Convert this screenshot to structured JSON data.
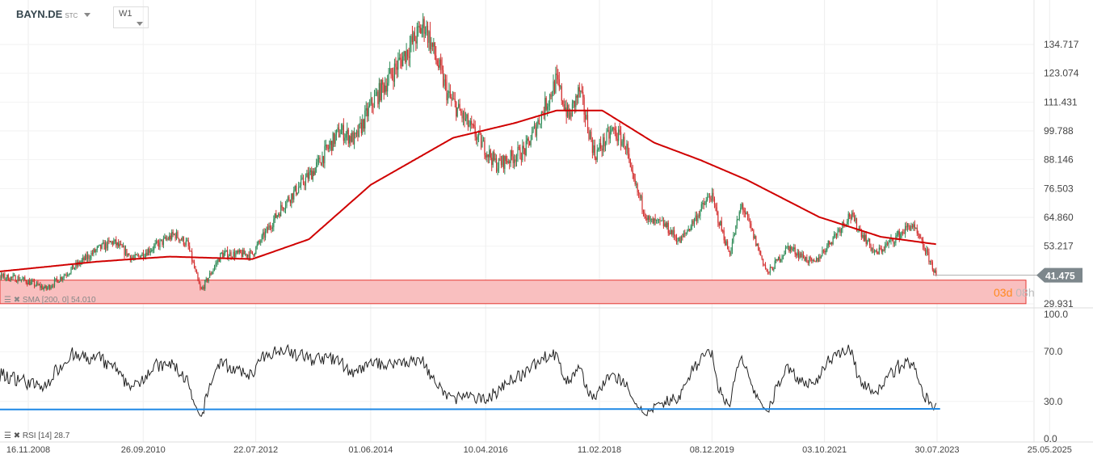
{
  "header": {
    "symbol": "BAYN.DE",
    "symbol_tag": "STC",
    "timeframe": "W1"
  },
  "indicators": {
    "sma_label": "SMA [200, 0] 54.010",
    "rsi_label": "RSI [14] 28.7"
  },
  "countdown": {
    "days": "03d",
    "hours": "08h"
  },
  "colors": {
    "up": "#2e8b57",
    "down": "#d32f2f",
    "sma": "#d00000",
    "zone_fill": "#f9bfbf",
    "zone_border": "#e53935",
    "rsi": "#222222",
    "rsi_support": "#1e88e5",
    "price_tag": "#7d878c",
    "countdown": "#ff8a1e"
  },
  "chart_data": [
    {
      "type": "candlestick",
      "title": "",
      "y_ticks": [
        "134.717",
        "123.074",
        "111.431",
        "99.788",
        "88.146",
        "76.503",
        "64.860",
        "53.217",
        "29.931"
      ],
      "ylim": [
        29.931,
        134.717
      ],
      "x_ticks": [
        "16.11.2008",
        "26.09.2010",
        "22.07.2012",
        "01.06.2014",
        "10.04.2016",
        "11.02.2018",
        "08.12.2019",
        "03.10.2021",
        "30.07.2023",
        "25.05.2025"
      ],
      "last_price": "41.475",
      "price_path": [
        [
          "2008-01-07",
          42
        ],
        [
          "2008-10-01",
          40
        ],
        [
          "2009-03-01",
          36
        ],
        [
          "2010-01-01",
          52
        ],
        [
          "2010-04-01",
          55
        ],
        [
          "2010-08-01",
          48
        ],
        [
          "2011-04-01",
          58
        ],
        [
          "2011-06-15",
          54
        ],
        [
          "2011-09-01",
          35
        ],
        [
          "2012-01-01",
          50
        ],
        [
          "2012-07-01",
          50
        ],
        [
          "2013-01-01",
          70
        ],
        [
          "2013-07-01",
          84
        ],
        [
          "2013-12-01",
          100
        ],
        [
          "2014-03-01",
          96
        ],
        [
          "2014-06-01",
          110
        ],
        [
          "2015-04-15",
          143
        ],
        [
          "2015-09-01",
          114
        ],
        [
          "2016-01-01",
          102
        ],
        [
          "2016-06-15",
          86
        ],
        [
          "2016-12-01",
          92
        ],
        [
          "2017-06-01",
          120
        ],
        [
          "2017-08-15",
          105
        ],
        [
          "2017-10-15",
          116
        ],
        [
          "2018-01-15",
          90
        ],
        [
          "2018-05-01",
          100
        ],
        [
          "2018-07-20",
          94
        ],
        [
          "2018-08-15",
          82
        ],
        [
          "2018-12-01",
          63
        ],
        [
          "2019-03-01",
          62
        ],
        [
          "2019-06-01",
          55
        ],
        [
          "2019-12-01",
          74
        ],
        [
          "2020-03-20",
          50
        ],
        [
          "2020-06-01",
          70
        ],
        [
          "2020-11-01",
          42
        ],
        [
          "2021-03-01",
          53
        ],
        [
          "2021-08-01",
          46
        ],
        [
          "2022-03-01",
          66
        ],
        [
          "2022-08-01",
          50
        ],
        [
          "2023-03-01",
          62
        ],
        [
          "2023-06-01",
          50
        ],
        [
          "2023-07-24",
          41.475
        ]
      ],
      "sma": {
        "period": 200,
        "last": 54.01,
        "path": [
          [
            "2008-01-07",
            42
          ],
          [
            "2010-01-01",
            47
          ],
          [
            "2011-03-01",
            49
          ],
          [
            "2012-07-01",
            48
          ],
          [
            "2013-06-01",
            56
          ],
          [
            "2014-06-01",
            78
          ],
          [
            "2015-10-01",
            97
          ],
          [
            "2016-10-01",
            103
          ],
          [
            "2017-06-01",
            108
          ],
          [
            "2018-03-01",
            108
          ],
          [
            "2019-01-01",
            95
          ],
          [
            "2019-10-01",
            88
          ],
          [
            "2020-07-01",
            80
          ],
          [
            "2021-09-01",
            65
          ],
          [
            "2022-09-01",
            57
          ],
          [
            "2023-07-24",
            54.01
          ]
        ]
      },
      "support_zone": [
        30,
        39.5
      ]
    },
    {
      "type": "line",
      "title": "RSI [14]",
      "y_ticks": [
        "100.0",
        "70.0",
        "30.0",
        "0.0"
      ],
      "ylim": [
        0,
        100
      ],
      "last": 28.7,
      "support_line": [
        [
          "2008-01-07",
          23.5
        ],
        [
          "2023-07-24",
          24
        ]
      ]
    }
  ]
}
